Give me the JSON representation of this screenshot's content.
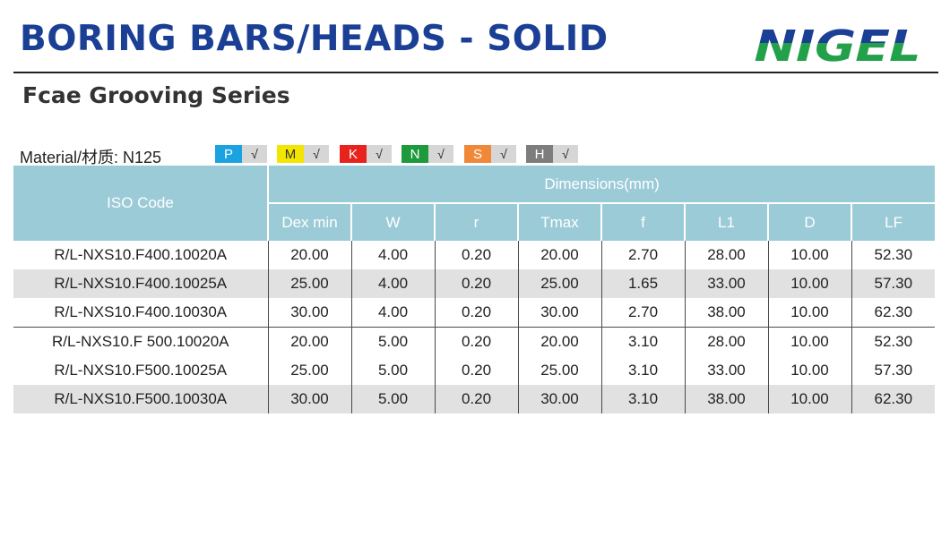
{
  "header": {
    "title": "BORING BARS/HEADS - SOLID",
    "brand": "NIGEL",
    "subtitle": "Fcae Grooving Series"
  },
  "material": {
    "label": "Material/材质:  N125",
    "badges": [
      {
        "letter": "P",
        "check": "√",
        "color": "#1aa3e0"
      },
      {
        "letter": "M",
        "check": "√",
        "color": "#f2e500"
      },
      {
        "letter": "K",
        "check": "√",
        "color": "#e8231d"
      },
      {
        "letter": "N",
        "check": "√",
        "color": "#1c9a3c"
      },
      {
        "letter": "S",
        "check": "√",
        "color": "#f0883a"
      },
      {
        "letter": "H",
        "check": "√",
        "color": "#7d7d7d"
      }
    ]
  },
  "table": {
    "iso_header": "ISO Code",
    "group_header": "Dimensions(mm)",
    "columns": [
      "Dex min",
      "W",
      "r",
      "Tmax",
      "f",
      "L1",
      "D",
      "LF"
    ],
    "rows": [
      [
        "R/L-NXS10.F400.10020A",
        "20.00",
        "4.00",
        "0.20",
        "20.00",
        "2.70",
        "28.00",
        "10.00",
        "52.30"
      ],
      [
        "R/L-NXS10.F400.10025A",
        "25.00",
        "4.00",
        "0.20",
        "25.00",
        "1.65",
        "33.00",
        "10.00",
        "57.30"
      ],
      [
        "R/L-NXS10.F400.10030A",
        "30.00",
        "4.00",
        "0.20",
        "30.00",
        "2.70",
        "38.00",
        "10.00",
        "62.30"
      ],
      [
        "R/L-NXS10.F 500.10020A",
        "20.00",
        "5.00",
        "0.20",
        "20.00",
        "3.10",
        "28.00",
        "10.00",
        "52.30"
      ],
      [
        "R/L-NXS10.F500.10025A",
        "25.00",
        "5.00",
        "0.20",
        "25.00",
        "3.10",
        "33.00",
        "10.00",
        "57.30"
      ],
      [
        "R/L-NXS10.F500.10030A",
        "30.00",
        "5.00",
        "0.20",
        "30.00",
        "3.10",
        "38.00",
        "10.00",
        "62.30"
      ]
    ]
  },
  "colors": {
    "title": "#1a3f95",
    "brand_blue": "#1a3f95",
    "brand_green": "#23a04a",
    "header_bg": "#9ccbd8",
    "alt_row": "#e1e1e1"
  }
}
